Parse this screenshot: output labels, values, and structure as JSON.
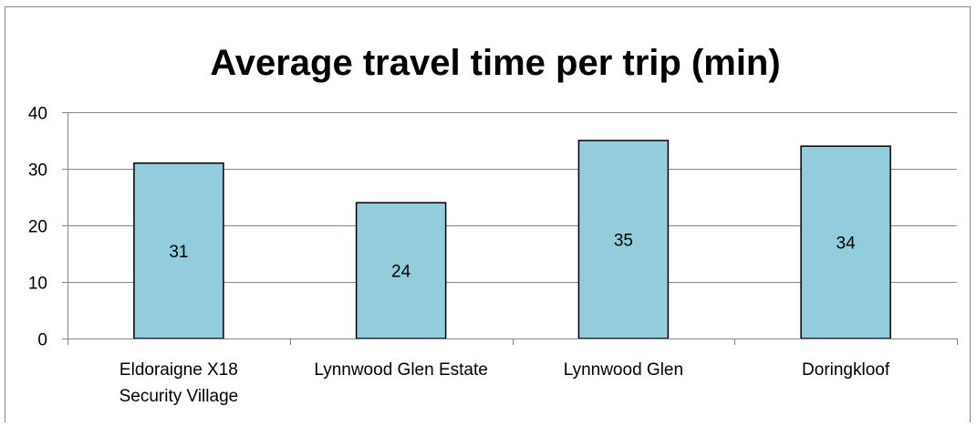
{
  "chart_data": {
    "type": "bar",
    "title": "Average travel time per trip (min)",
    "xlabel": "",
    "ylabel": "",
    "categories": [
      [
        "Eldoraigne X18",
        "Security Village"
      ],
      [
        "Lynnwood Glen Estate"
      ],
      [
        "Lynnwood Glen"
      ],
      [
        "Doringkloof"
      ]
    ],
    "values": [
      31,
      24,
      35,
      34
    ],
    "data_labels": [
      "31",
      "24",
      "35",
      "34"
    ],
    "ylim": [
      0,
      40
    ],
    "yticks": [
      0,
      10,
      20,
      30,
      40
    ],
    "grid": true,
    "legend": "none",
    "colors": {
      "bar_fill": "#93cddd",
      "bar_stroke": "#000000",
      "grid": "#868686",
      "axis": "#868686",
      "frame": "#868686"
    }
  }
}
